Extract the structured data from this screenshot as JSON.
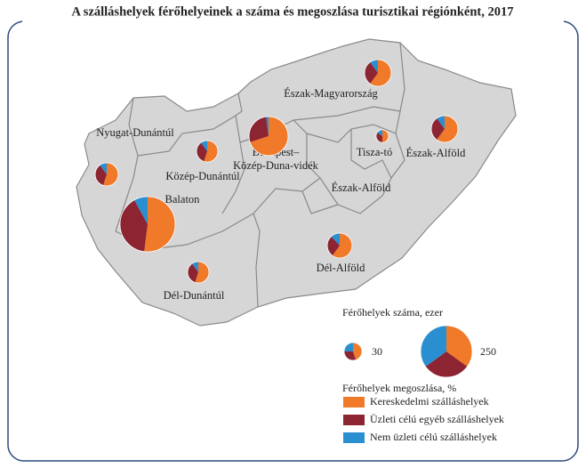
{
  "title": "A szálláshelyek férőhelyeinek a száma és megoszlása turisztikai régiónként, 2017",
  "categories": [
    "Kereskedelmi szálláshelyek",
    "Üzleti célú egyéb szálláshelyek",
    "Nem üzleti célú szálláshelyek"
  ],
  "colors": [
    "#f07a2a",
    "#8c2432",
    "#2a8fd0"
  ],
  "regions": [
    {
      "label": "Észak-Magyarország",
      "total": 67,
      "shares": [
        60,
        30,
        10
      ]
    },
    {
      "label": "Nyugat-Dunántúl",
      "total": 50,
      "shares": [
        55,
        35,
        10
      ]
    },
    {
      "label": "Közép-Dunántúl",
      "total": 43,
      "shares": [
        55,
        35,
        10
      ]
    },
    {
      "label": "Budapest–Közép-Duna-vidék",
      "total": 144,
      "shares": [
        70,
        28,
        2
      ]
    },
    {
      "label": "Balaton",
      "total": 286,
      "shares": [
        52,
        40,
        8
      ]
    },
    {
      "label": "Dél-Dunántúl",
      "total": 43,
      "shares": [
        55,
        35,
        10
      ]
    },
    {
      "label": "Észak-Alföld",
      "total": 67,
      "shares": [
        60,
        30,
        10
      ]
    },
    {
      "label": "Tisza-tó",
      "total": 15,
      "shares": [
        50,
        35,
        15
      ]
    },
    {
      "label": "Dél-Alföld",
      "total": 58,
      "shares": [
        60,
        28,
        12
      ]
    }
  ],
  "extra_labels": [
    "Észak-Alföld"
  ],
  "size_legend": {
    "title": "Férőhelyek száma, ezer",
    "items": [
      {
        "value": 30,
        "shares": [
          45,
          30,
          25
        ]
      },
      {
        "value": 250,
        "shares": [
          35,
          30,
          35
        ]
      }
    ]
  },
  "share_legend": {
    "title": "Férőhelyek megoszlása, %"
  }
}
